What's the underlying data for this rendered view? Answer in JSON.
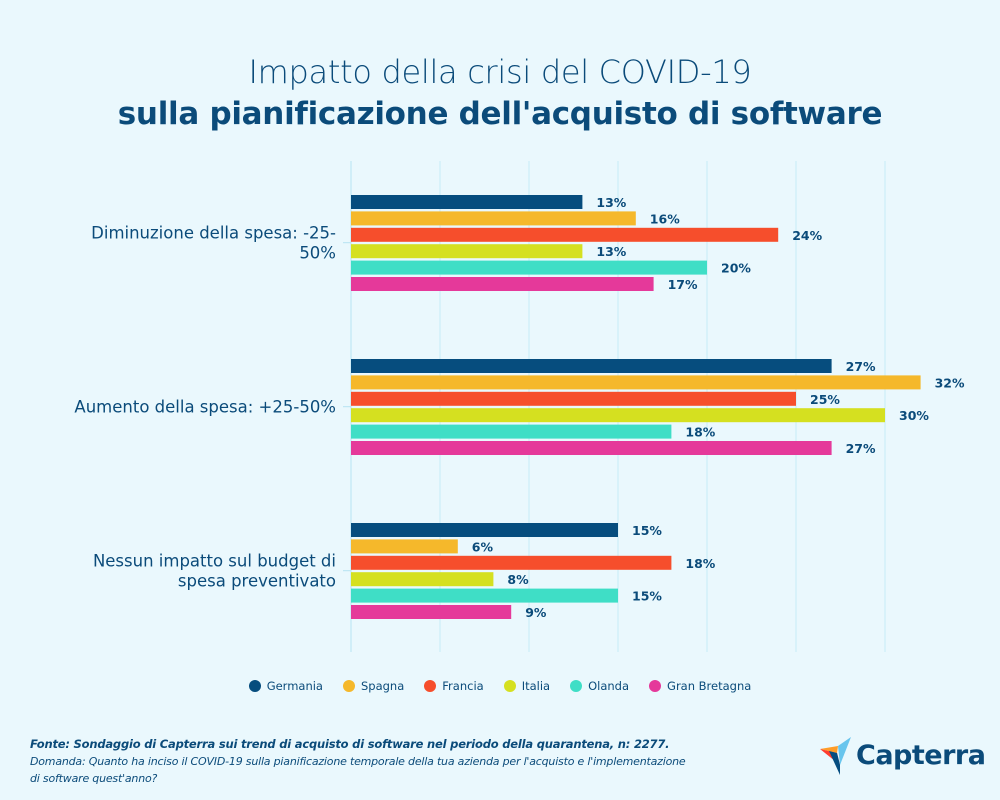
{
  "title": {
    "line1": "Impatto della crisi del COVID-19",
    "line2": "sulla pianificazione dell'acquisto di software"
  },
  "chart_data": {
    "type": "bar",
    "orientation": "horizontal",
    "title": "Impatto della crisi del COVID-19 sulla pianificazione dell'acquisto di software",
    "xlabel": "",
    "ylabel": "",
    "xlim": [
      0,
      30
    ],
    "x_tick_step": 5,
    "grid": true,
    "legend_position": "bottom-center",
    "value_suffix": "%",
    "categories": [
      [
        "Diminuzione della spesa: -25-",
        "50%"
      ],
      [
        "Aumento della spesa: +25-50%"
      ],
      [
        "Nessun impatto sul budget di",
        "spesa preventivato"
      ]
    ],
    "series": [
      {
        "name": "Germania",
        "color": "#064d7e",
        "values": [
          13,
          27,
          15
        ]
      },
      {
        "name": "Spagna",
        "color": "#f5b82b",
        "values": [
          16,
          32,
          6
        ]
      },
      {
        "name": "Francia",
        "color": "#f64e2c",
        "values": [
          24,
          25,
          18
        ]
      },
      {
        "name": "Italia",
        "color": "#d5e020",
        "values": [
          13,
          30,
          8
        ]
      },
      {
        "name": "Olanda",
        "color": "#3fdec6",
        "values": [
          20,
          18,
          15
        ]
      },
      {
        "name": "Gran Bretagna",
        "color": "#e5399a",
        "values": [
          17,
          27,
          9
        ]
      }
    ]
  },
  "footer": {
    "source": "Fonte: Sondaggio di Capterra sui trend di acquisto di software nel periodo della quarantena, n: 2277.",
    "question_line1": "Domanda: Quanto ha inciso il COVID-19 sulla pianificazione temporale della tua azienda per l'acquisto e l'implementazione",
    "question_line2": "di software quest'anno?"
  },
  "logo": {
    "name": "Capterra",
    "colors": {
      "orange": "#ff9d28",
      "light_blue": "#68c5ed",
      "dark_blue": "#044d80",
      "red": "#ff3d2e"
    }
  }
}
